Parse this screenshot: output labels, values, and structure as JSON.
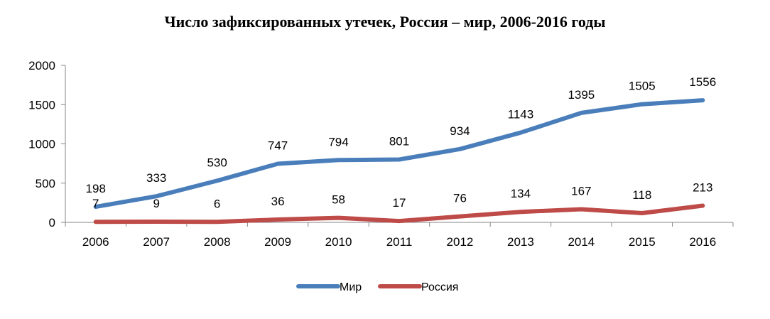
{
  "chart_data": {
    "type": "line",
    "title": "Число зафиксированных утечек, Россия – мир, 2006-2016 годы",
    "xlabel": "",
    "ylabel": "",
    "ylim": [
      0,
      2000
    ],
    "yticks": [
      0,
      500,
      1000,
      1500,
      2000
    ],
    "grid": false,
    "legend_position": "bottom",
    "categories": [
      "2006",
      "2007",
      "2008",
      "2009",
      "2010",
      "2011",
      "2012",
      "2013",
      "2014",
      "2015",
      "2016"
    ],
    "series": [
      {
        "name": "Мир",
        "color": "#4a7ebb",
        "values": [
          198,
          333,
          530,
          747,
          794,
          801,
          934,
          1143,
          1395,
          1505,
          1556
        ]
      },
      {
        "name": "Россия",
        "color": "#be4b48",
        "values": [
          7,
          9,
          6,
          36,
          58,
          17,
          76,
          134,
          167,
          118,
          213
        ]
      }
    ]
  }
}
